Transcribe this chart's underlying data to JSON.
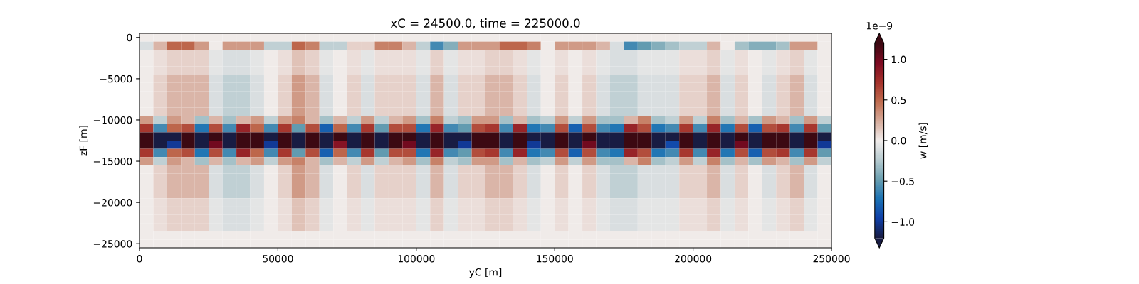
{
  "chart_data": {
    "type": "heatmap",
    "title": "xC = 24500.0, time = 225000.0",
    "xlabel": "yC [m]",
    "ylabel": "zF [m]",
    "clabel": "w [m/s]",
    "annotations": [
      "1e−9"
    ],
    "x": [
      2500,
      7500,
      12500,
      17500,
      22500,
      27500,
      32500,
      37500,
      42500,
      47500,
      52500,
      57500,
      62500,
      67500,
      72500,
      77500,
      82500,
      87500,
      92500,
      97500,
      102500,
      107500,
      112500,
      117500,
      122500,
      127500,
      132500,
      137500,
      142500,
      147500,
      152500,
      157500,
      162500,
      167500,
      172500,
      177500,
      182500,
      187500,
      192500,
      197500,
      202500,
      207500,
      212500,
      217500,
      222500,
      227500,
      232500,
      237500,
      242500,
      247500
    ],
    "y": [
      0,
      -1000,
      -2000,
      -3000,
      -4000,
      -5000,
      -6000,
      -7000,
      -8000,
      -9000,
      -10000,
      -11000,
      -12000,
      -13000,
      -14000,
      -15000,
      -16000,
      -17000,
      -18000,
      -19000,
      -20000,
      -21000,
      -22000,
      -23000,
      -24000,
      -25000
    ],
    "xlim": [
      0,
      250000
    ],
    "ylim": [
      -25500,
      500
    ],
    "xticks": [
      0,
      50000,
      100000,
      150000,
      200000,
      250000
    ],
    "yticks": [
      0,
      {
        "value": -5000,
        "label": "−5000"
      },
      {
        "value": -10000,
        "label": "−10000"
      },
      {
        "value": -15000,
        "label": "−15000"
      },
      {
        "value": -20000,
        "label": "−20000"
      },
      {
        "value": -25000,
        "label": "−25000"
      }
    ],
    "clim": [
      -1.2,
      1.2
    ],
    "cticks": [
      {
        "value": -1.0,
        "label": "−1.0"
      },
      {
        "value": -0.5,
        "label": "−0.5"
      },
      {
        "value": 0,
        "label": "0.0"
      },
      0.5,
      {
        "value": 1,
        "label": "1.0"
      }
    ],
    "cells": [
      [
        0,
        0,
        0,
        0,
        0,
        0,
        0,
        0,
        0,
        0,
        0,
        0,
        0,
        0,
        0,
        0,
        0,
        0,
        0,
        0,
        0,
        0,
        0,
        0,
        0,
        0,
        0,
        0,
        0,
        0,
        0,
        0,
        0,
        0,
        0,
        0,
        0,
        0,
        0,
        0,
        0,
        0,
        0,
        0,
        0,
        0,
        0,
        0,
        0,
        0
      ],
      [
        -0.1,
        0.2,
        0.5,
        0.5,
        0.3,
        0,
        0.3,
        0.3,
        0.3,
        -0.2,
        -0.2,
        0.5,
        0.4,
        -0.2,
        -0.2,
        0.1,
        0.1,
        0.4,
        0.4,
        0.2,
        -0.2,
        -0.6,
        -0.4,
        0.3,
        0.3,
        0.3,
        0.5,
        0.5,
        0.4,
        0,
        0.3,
        0.3,
        0.3,
        0.2,
        -0.1,
        -0.6,
        -0.5,
        -0.4,
        -0.3,
        -0.2,
        -0.2,
        0.2,
        0,
        -0.3,
        -0.4,
        -0.4,
        -0.3,
        0.3,
        0.3,
        0
      ],
      [
        0,
        0.05,
        0.1,
        0.1,
        0.1,
        -0.05,
        -0.1,
        -0.1,
        -0.05,
        0,
        0.05,
        0.15,
        0.1,
        -0.05,
        0,
        0.05,
        -0.05,
        0.05,
        0.05,
        0.05,
        -0.05,
        0.1,
        -0.05,
        0.05,
        0.05,
        0.1,
        0.1,
        0.05,
        -0.05,
        0,
        0.05,
        0,
        0.05,
        -0.05,
        -0.1,
        -0.1,
        -0.05,
        -0.05,
        -0.05,
        0.05,
        0.05,
        0.1,
        -0.05,
        0.05,
        0,
        -0.05,
        0.05,
        0.1,
        -0.05,
        0
      ],
      [
        0,
        0.05,
        0.1,
        0.1,
        0.1,
        -0.05,
        -0.1,
        -0.1,
        -0.05,
        0,
        0.05,
        0.15,
        0.1,
        -0.05,
        0,
        0.05,
        -0.05,
        0.05,
        0.05,
        0.05,
        -0.05,
        0.1,
        -0.05,
        0.05,
        0.05,
        0.1,
        0.1,
        0.05,
        -0.05,
        0,
        0.05,
        0,
        0.05,
        -0.05,
        -0.1,
        -0.1,
        -0.05,
        -0.05,
        -0.05,
        0.05,
        0.05,
        0.1,
        -0.05,
        0.05,
        0,
        -0.05,
        0.05,
        0.1,
        -0.05,
        0
      ],
      [
        0,
        0.05,
        0.1,
        0.1,
        0.1,
        -0.05,
        -0.1,
        -0.1,
        -0.05,
        0,
        0.05,
        0.15,
        0.1,
        -0.05,
        0,
        0.05,
        -0.05,
        0.05,
        0.05,
        0.05,
        -0.05,
        0.1,
        -0.05,
        0.05,
        0.05,
        0.1,
        0.1,
        0.05,
        -0.05,
        0,
        0.05,
        0,
        0.05,
        -0.05,
        -0.1,
        -0.1,
        -0.05,
        -0.05,
        -0.05,
        0.05,
        0.05,
        0.1,
        -0.05,
        0.05,
        0,
        -0.05,
        0.05,
        0.1,
        -0.05,
        0
      ],
      [
        0,
        0.1,
        0.2,
        0.2,
        0.2,
        -0.1,
        -0.2,
        -0.2,
        -0.1,
        0,
        0.1,
        0.3,
        0.2,
        -0.1,
        0,
        0.1,
        -0.1,
        0.1,
        0.1,
        0.1,
        -0.1,
        0.2,
        -0.1,
        0.1,
        0.1,
        0.2,
        0.2,
        0.1,
        -0.1,
        0,
        0.1,
        0,
        0.1,
        -0.1,
        -0.2,
        -0.2,
        -0.1,
        -0.1,
        -0.1,
        0.1,
        0.1,
        0.2,
        -0.1,
        0.1,
        0,
        -0.1,
        0.1,
        0.2,
        -0.1,
        0
      ],
      [
        0,
        0.1,
        0.2,
        0.2,
        0.2,
        -0.1,
        -0.2,
        -0.2,
        -0.1,
        0,
        0.1,
        0.3,
        0.2,
        -0.1,
        0,
        0.1,
        -0.1,
        0.1,
        0.1,
        0.1,
        -0.1,
        0.2,
        -0.1,
        0.1,
        0.1,
        0.2,
        0.2,
        0.1,
        -0.1,
        0,
        0.1,
        0,
        0.1,
        -0.1,
        -0.2,
        -0.2,
        -0.1,
        -0.1,
        -0.1,
        0.1,
        0.1,
        0.2,
        -0.1,
        0.1,
        0,
        -0.1,
        0.1,
        0.2,
        -0.1,
        0
      ],
      [
        0,
        0.1,
        0.2,
        0.2,
        0.2,
        -0.1,
        -0.2,
        -0.2,
        -0.1,
        0,
        0.1,
        0.3,
        0.2,
        -0.1,
        0,
        0.1,
        -0.1,
        0.1,
        0.1,
        0.1,
        -0.1,
        0.2,
        -0.1,
        0.1,
        0.1,
        0.2,
        0.2,
        0.1,
        -0.1,
        0,
        0.1,
        0,
        0.1,
        -0.1,
        -0.2,
        -0.2,
        -0.1,
        -0.1,
        -0.1,
        0.1,
        0.1,
        0.2,
        -0.1,
        0.1,
        0,
        -0.1,
        0.1,
        0.2,
        -0.1,
        0
      ],
      [
        0,
        0.1,
        0.2,
        0.2,
        0.2,
        -0.1,
        -0.2,
        -0.2,
        -0.1,
        0,
        0.1,
        0.3,
        0.2,
        -0.1,
        0,
        0.1,
        -0.1,
        0.1,
        0.1,
        0.1,
        -0.1,
        0.2,
        -0.1,
        0.1,
        0.1,
        0.2,
        0.2,
        0.1,
        -0.1,
        0,
        0.1,
        0,
        0.1,
        -0.1,
        -0.2,
        -0.2,
        -0.1,
        -0.1,
        -0.1,
        0.1,
        0.1,
        0.2,
        -0.1,
        0.1,
        0,
        -0.1,
        0.1,
        0.2,
        -0.1,
        0
      ],
      [
        0,
        0.1,
        0.2,
        0.2,
        0.2,
        -0.1,
        -0.2,
        -0.2,
        -0.1,
        0,
        0.1,
        0.3,
        0.2,
        -0.1,
        0,
        0.1,
        -0.1,
        0.1,
        0.1,
        0.1,
        -0.1,
        0.2,
        -0.1,
        0.1,
        0.1,
        0.2,
        0.2,
        0.1,
        -0.1,
        0,
        0.1,
        0,
        0.1,
        -0.1,
        -0.2,
        -0.2,
        -0.1,
        -0.1,
        -0.1,
        0.1,
        0.1,
        0.2,
        -0.1,
        0.1,
        0,
        -0.1,
        0.1,
        0.2,
        -0.1,
        0
      ],
      [
        0.3,
        -0.2,
        0.3,
        0.2,
        -0.3,
        0.2,
        -0.3,
        0.2,
        0.3,
        -0.2,
        0.3,
        0.4,
        0.2,
        -0.3,
        0.2,
        -0.2,
        0.3,
        -0.2,
        0.2,
        0.3,
        -0.3,
        0.4,
        -0.2,
        -0.3,
        0.3,
        0.3,
        -0.3,
        0.2,
        -0.3,
        -0.2,
        0.3,
        -0.2,
        0.3,
        -0.3,
        -0.3,
        0.2,
        0.4,
        -0.3,
        -0.2,
        0.3,
        -0.2,
        0.4,
        -0.3,
        0.2,
        -0.3,
        0.3,
        0.2,
        -0.3,
        0.3,
        -0.2
      ],
      [
        0.7,
        -0.6,
        0.5,
        0.6,
        -0.7,
        0.6,
        -0.6,
        0.8,
        0.5,
        -0.6,
        0.7,
        -0.5,
        0.6,
        -0.8,
        0.5,
        -0.6,
        0.7,
        -0.5,
        0.6,
        0.6,
        -0.7,
        0.8,
        -0.6,
        -0.5,
        0.6,
        0.7,
        -0.6,
        0.8,
        -0.7,
        -0.6,
        0.6,
        -0.8,
        0.6,
        -0.6,
        -0.7,
        0.8,
        0.6,
        -0.7,
        -0.6,
        0.7,
        -0.6,
        0.8,
        -0.7,
        0.6,
        -0.8,
        0.6,
        0.7,
        -0.6,
        0.7,
        -0.5
      ],
      [
        1.2,
        -1.2,
        -1.2,
        1.2,
        -1.2,
        1.2,
        -1.2,
        1.2,
        1.2,
        -1.2,
        1.2,
        -1.2,
        1.2,
        -1.2,
        1.2,
        -1.2,
        1.2,
        -1.2,
        1.2,
        1.2,
        -1.2,
        1.2,
        -1.2,
        -1.2,
        1.2,
        1.2,
        -1.2,
        1.2,
        -1.2,
        -1.2,
        1.2,
        -1.2,
        1.2,
        -1.2,
        -1.2,
        1.2,
        1.2,
        -1.2,
        -1.2,
        1.2,
        -1.2,
        1.2,
        -1.2,
        1.2,
        -1.2,
        1.2,
        1.2,
        -1.2,
        1.2,
        -1.2
      ],
      [
        1.2,
        -1.2,
        -1.0,
        1.2,
        -1.2,
        1.0,
        -1.2,
        1.2,
        1.2,
        -1.0,
        1.2,
        -1.2,
        1.2,
        -1.2,
        0.9,
        -1.2,
        1.2,
        -1.2,
        1.2,
        1.0,
        -1.2,
        1.2,
        -1.2,
        -1.0,
        1.2,
        1.2,
        -1.2,
        1.2,
        -1.0,
        -1.2,
        1.2,
        -1.2,
        1.0,
        -1.2,
        -1.2,
        1.2,
        1.2,
        -1.2,
        -0.9,
        1.2,
        -1.2,
        1.2,
        -1.2,
        1.0,
        -1.2,
        1.2,
        1.2,
        -1.2,
        1.2,
        -1.0
      ],
      [
        0.7,
        -0.6,
        0.5,
        0.6,
        -0.7,
        0.6,
        -0.6,
        0.8,
        0.5,
        -0.6,
        0.7,
        -0.5,
        0.6,
        -0.8,
        0.5,
        -0.6,
        0.7,
        -0.5,
        0.6,
        0.6,
        -0.7,
        0.8,
        -0.6,
        -0.5,
        0.6,
        0.7,
        -0.6,
        0.8,
        -0.7,
        -0.6,
        0.6,
        -0.8,
        0.6,
        -0.6,
        -0.7,
        0.8,
        0.6,
        -0.7,
        -0.6,
        0.7,
        -0.6,
        0.8,
        -0.7,
        0.6,
        -0.8,
        0.6,
        0.7,
        -0.6,
        0.7,
        -0.5
      ],
      [
        0.3,
        -0.2,
        0.3,
        0.2,
        -0.3,
        0.2,
        -0.3,
        0.2,
        0.3,
        -0.2,
        0.3,
        0.4,
        0.2,
        -0.3,
        0.2,
        -0.2,
        0.3,
        -0.2,
        0.2,
        0.3,
        -0.3,
        0.4,
        -0.2,
        -0.3,
        0.3,
        0.3,
        -0.3,
        0.2,
        -0.3,
        -0.2,
        0.3,
        -0.2,
        0.3,
        -0.3,
        -0.3,
        0.2,
        0.4,
        -0.3,
        -0.2,
        0.3,
        -0.2,
        0.4,
        -0.3,
        0.2,
        -0.3,
        0.3,
        0.2,
        -0.3,
        0.3,
        -0.2
      ],
      [
        0,
        0.1,
        0.2,
        0.2,
        0.2,
        -0.1,
        -0.2,
        -0.2,
        -0.1,
        0,
        0.1,
        0.3,
        0.2,
        -0.1,
        0,
        0.1,
        -0.1,
        0.1,
        0.1,
        0.1,
        -0.1,
        0.2,
        -0.1,
        0.1,
        0.1,
        0.2,
        0.2,
        0.1,
        -0.1,
        0,
        0.1,
        0,
        0.1,
        -0.1,
        -0.2,
        -0.2,
        -0.1,
        -0.1,
        -0.1,
        0.1,
        0.1,
        0.2,
        -0.1,
        0.1,
        0,
        -0.1,
        0.1,
        0.2,
        -0.1,
        0
      ],
      [
        0,
        0.1,
        0.2,
        0.2,
        0.2,
        -0.1,
        -0.2,
        -0.2,
        -0.1,
        0,
        0.1,
        0.3,
        0.2,
        -0.1,
        0,
        0.1,
        -0.1,
        0.1,
        0.1,
        0.1,
        -0.1,
        0.2,
        -0.1,
        0.1,
        0.1,
        0.2,
        0.2,
        0.1,
        -0.1,
        0,
        0.1,
        0,
        0.1,
        -0.1,
        -0.2,
        -0.2,
        -0.1,
        -0.1,
        -0.1,
        0.1,
        0.1,
        0.2,
        -0.1,
        0.1,
        0,
        -0.1,
        0.1,
        0.2,
        -0.1,
        0
      ],
      [
        0,
        0.1,
        0.2,
        0.2,
        0.2,
        -0.1,
        -0.2,
        -0.2,
        -0.1,
        0,
        0.1,
        0.3,
        0.2,
        -0.1,
        0,
        0.1,
        -0.1,
        0.1,
        0.1,
        0.1,
        -0.1,
        0.2,
        -0.1,
        0.1,
        0.1,
        0.2,
        0.2,
        0.1,
        -0.1,
        0,
        0.1,
        0,
        0.1,
        -0.1,
        -0.2,
        -0.2,
        -0.1,
        -0.1,
        -0.1,
        0.1,
        0.1,
        0.2,
        -0.1,
        0.1,
        0,
        -0.1,
        0.1,
        0.2,
        -0.1,
        0
      ],
      [
        0,
        0.1,
        0.2,
        0.2,
        0.2,
        -0.1,
        -0.2,
        -0.2,
        -0.1,
        0,
        0.1,
        0.3,
        0.2,
        -0.1,
        0,
        0.1,
        -0.1,
        0.1,
        0.1,
        0.1,
        -0.1,
        0.2,
        -0.1,
        0.1,
        0.1,
        0.2,
        0.2,
        0.1,
        -0.1,
        0,
        0.1,
        0,
        0.1,
        -0.1,
        -0.2,
        -0.2,
        -0.1,
        -0.1,
        -0.1,
        0.1,
        0.1,
        0.2,
        -0.1,
        0.1,
        0,
        -0.1,
        0.1,
        0.2,
        -0.1,
        0
      ],
      [
        0,
        0.05,
        0.1,
        0.1,
        0.1,
        -0.05,
        -0.1,
        -0.1,
        -0.05,
        0,
        0.05,
        0.15,
        0.1,
        -0.05,
        0,
        0.05,
        -0.05,
        0.05,
        0.05,
        0.05,
        -0.05,
        0.1,
        -0.05,
        0.05,
        0.05,
        0.1,
        0.1,
        0.05,
        -0.05,
        0,
        0.05,
        0,
        0.05,
        -0.05,
        -0.1,
        -0.1,
        -0.05,
        -0.05,
        -0.05,
        0.05,
        0.05,
        0.1,
        -0.05,
        0.05,
        0,
        -0.05,
        0.05,
        0.1,
        -0.05,
        0
      ],
      [
        0,
        0.05,
        0.1,
        0.1,
        0.1,
        -0.05,
        -0.1,
        -0.1,
        -0.05,
        0,
        0.05,
        0.15,
        0.1,
        -0.05,
        0,
        0.05,
        -0.05,
        0.05,
        0.05,
        0.05,
        -0.05,
        0.1,
        -0.05,
        0.05,
        0.05,
        0.1,
        0.1,
        0.05,
        -0.05,
        0,
        0.05,
        0,
        0.05,
        -0.05,
        -0.1,
        -0.1,
        -0.05,
        -0.05,
        -0.05,
        0.05,
        0.05,
        0.1,
        -0.05,
        0.05,
        0,
        -0.05,
        0.05,
        0.1,
        -0.05,
        0
      ],
      [
        0,
        0.05,
        0.1,
        0.1,
        0.1,
        -0.05,
        -0.1,
        -0.1,
        -0.05,
        0,
        0.05,
        0.15,
        0.1,
        -0.05,
        0,
        0.05,
        -0.05,
        0.05,
        0.05,
        0.05,
        -0.05,
        0.1,
        -0.05,
        0.05,
        0.05,
        0.1,
        0.1,
        0.05,
        -0.05,
        0,
        0.05,
        0,
        0.05,
        -0.05,
        -0.1,
        -0.1,
        -0.05,
        -0.05,
        -0.05,
        0.05,
        0.05,
        0.1,
        -0.05,
        0.05,
        0,
        -0.05,
        0.05,
        0.1,
        -0.05,
        0
      ],
      [
        0,
        0.05,
        0.1,
        0.1,
        0.1,
        -0.05,
        -0.1,
        -0.1,
        -0.05,
        0,
        0.05,
        0.15,
        0.1,
        -0.05,
        0,
        0.05,
        -0.05,
        0.05,
        0.05,
        0.05,
        -0.05,
        0.1,
        -0.05,
        0.05,
        0.05,
        0.1,
        0.1,
        0.05,
        -0.05,
        0,
        0.05,
        0,
        0.05,
        -0.05,
        -0.1,
        -0.1,
        -0.05,
        -0.05,
        -0.05,
        0.05,
        0.05,
        0.1,
        -0.05,
        0.05,
        0,
        -0.05,
        0.05,
        0.1,
        -0.05,
        0
      ],
      [
        0,
        0,
        0,
        0,
        0,
        0,
        0,
        0,
        0,
        0,
        0,
        0,
        0,
        0,
        0,
        0,
        0,
        0,
        0,
        0,
        0,
        0,
        0,
        0,
        0,
        0,
        0,
        0,
        0,
        0,
        0,
        0,
        0,
        0,
        0,
        0,
        0,
        0,
        0,
        0,
        0,
        0,
        0,
        0,
        0,
        0,
        0,
        0,
        0,
        0
      ],
      [
        0,
        0,
        0,
        0,
        0,
        0,
        0,
        0,
        0,
        0,
        0,
        0,
        0,
        0,
        0,
        0,
        0,
        0,
        0,
        0,
        0,
        0,
        0,
        0,
        0,
        0,
        0,
        0,
        0,
        0,
        0,
        0,
        0,
        0,
        0,
        0,
        0,
        0,
        0,
        0,
        0,
        0,
        0,
        0,
        0,
        0,
        0,
        0,
        0,
        0
      ]
    ]
  }
}
